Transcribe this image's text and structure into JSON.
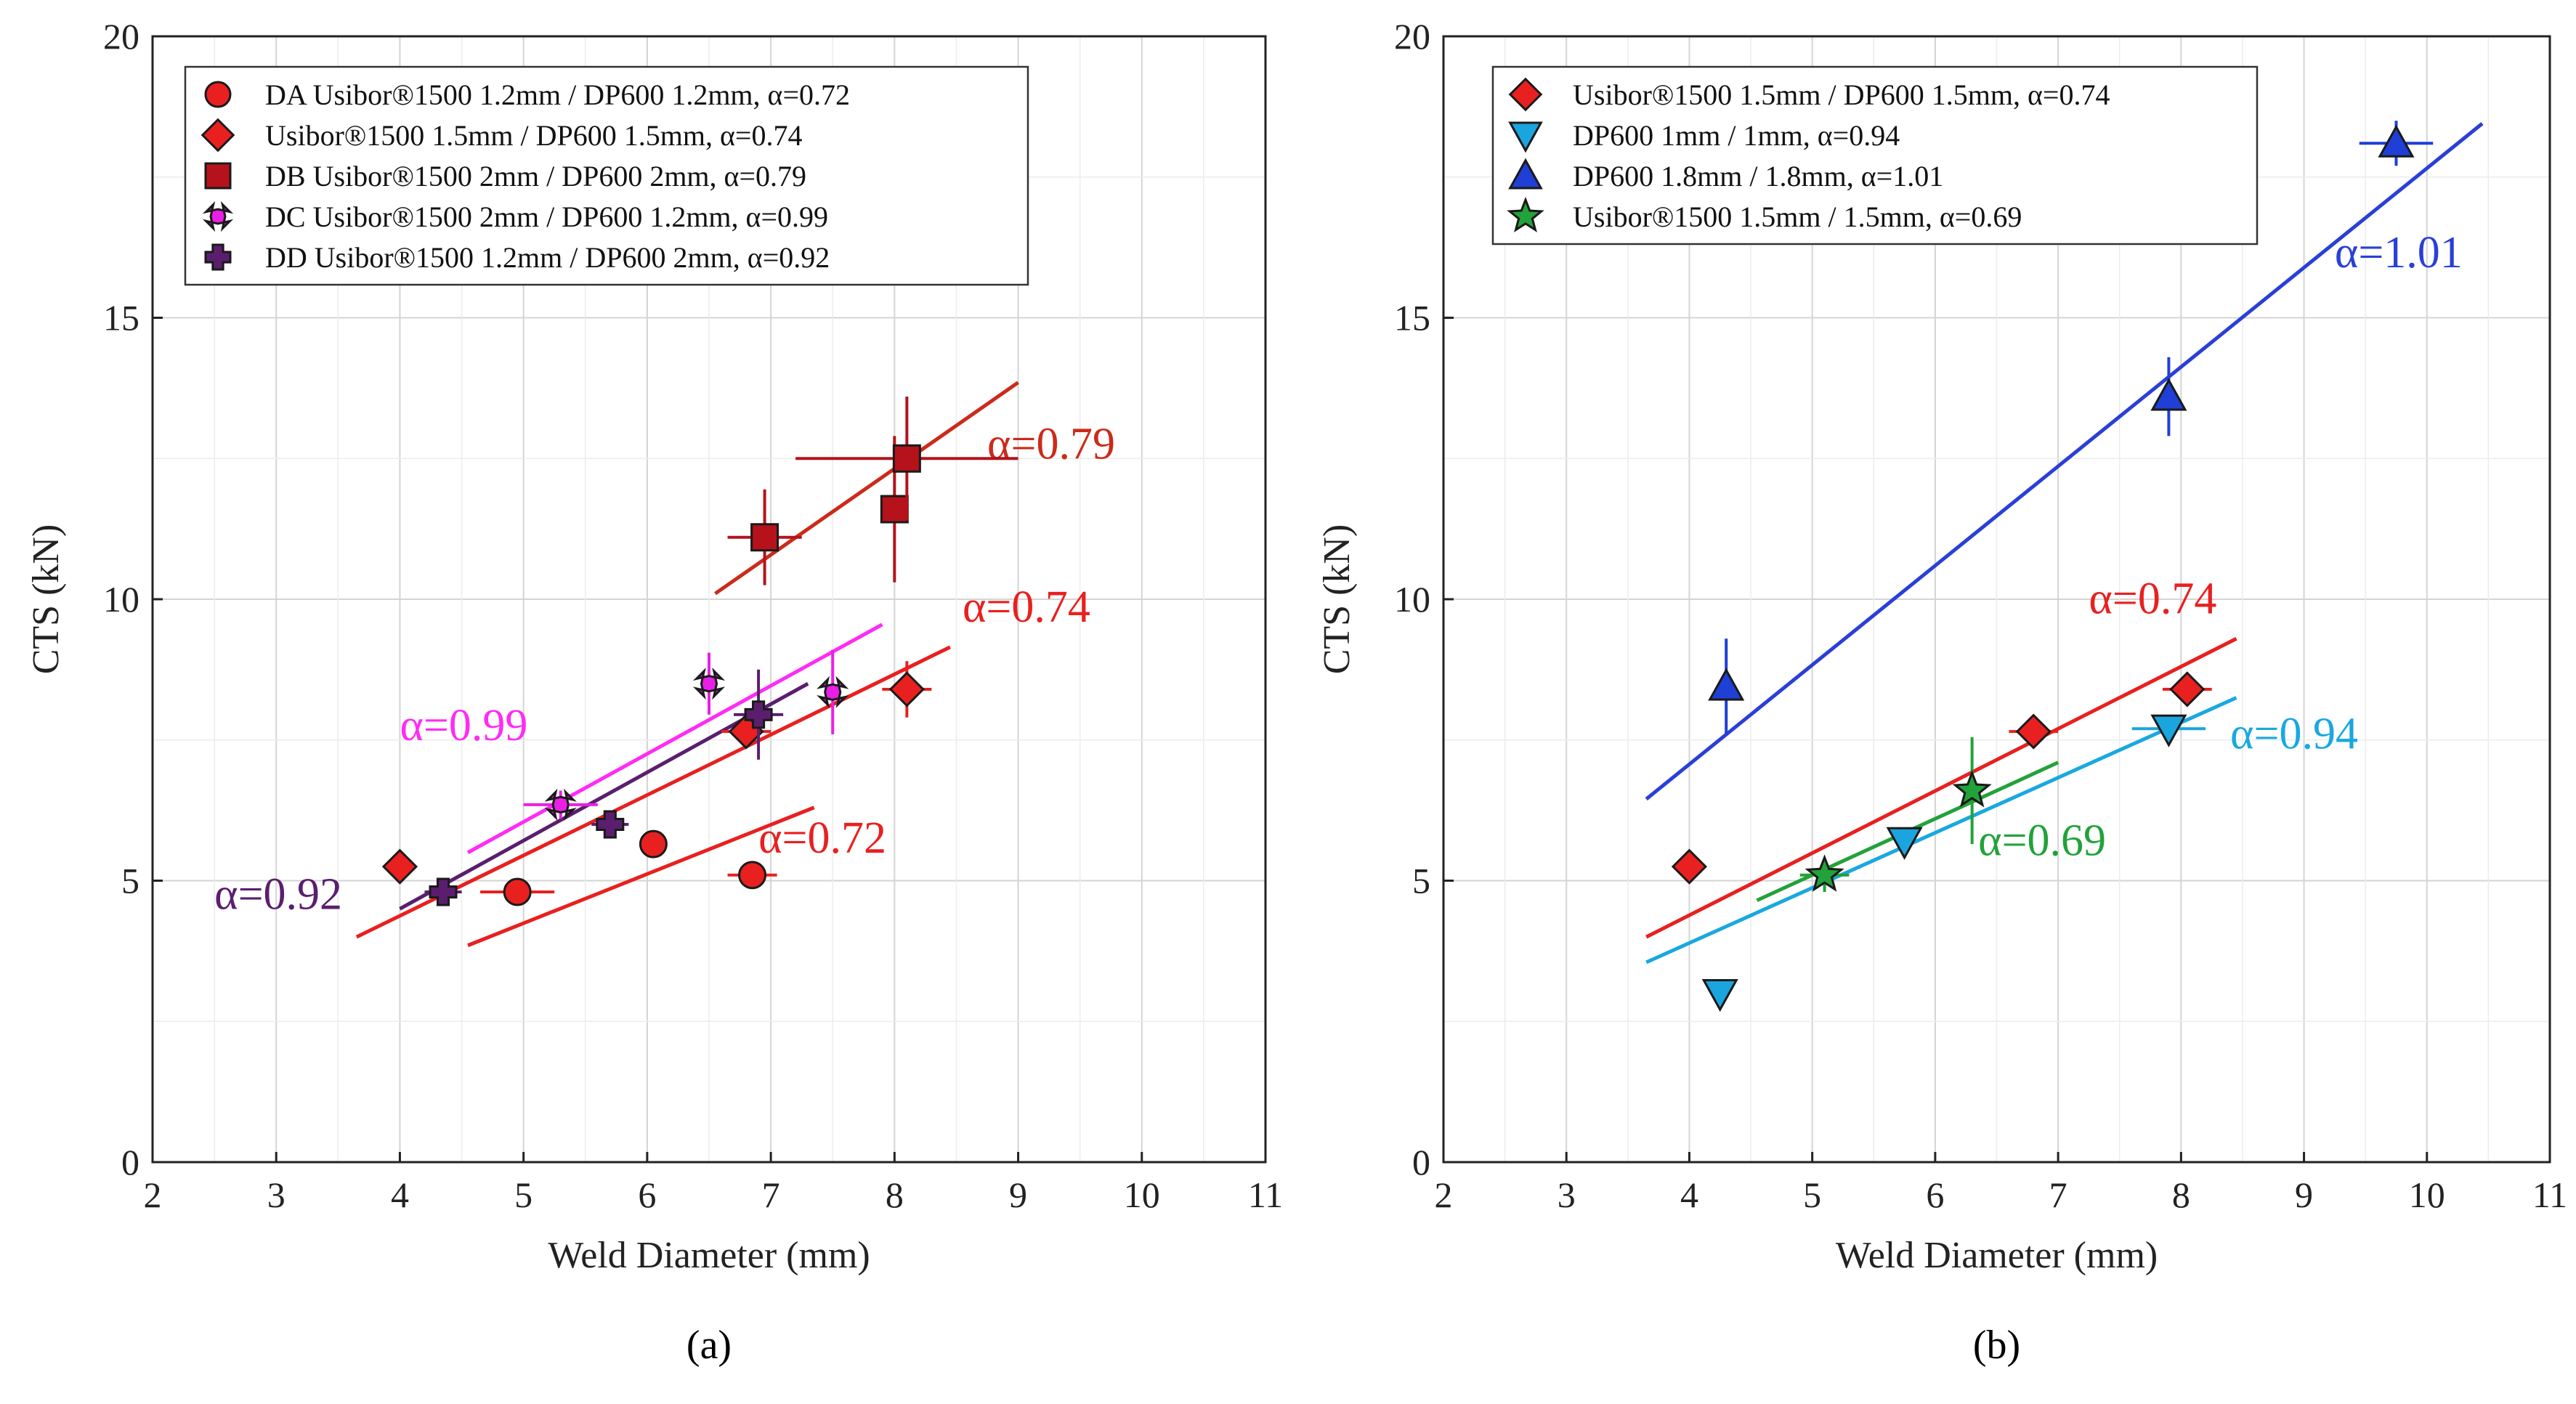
{
  "panels": [
    {
      "id": "a",
      "caption": "(a)",
      "chart_data": {
        "type": "scatter",
        "xlabel": "Weld Diameter (mm)",
        "ylabel": "CTS (kN)",
        "xlim": [
          2,
          11
        ],
        "ylim": [
          0,
          20
        ],
        "xticks": [
          2,
          3,
          4,
          5,
          6,
          7,
          8,
          9,
          10,
          11
        ],
        "yticks": [
          0,
          5,
          10,
          15,
          20
        ],
        "grid": true,
        "legend_position": "top-left",
        "series": [
          {
            "name": "DA Usibor®1500 1.2mm / DP600 1.2mm, α=0.72",
            "marker": "circle",
            "color": "#e8201f",
            "points": [
              {
                "x": 4.95,
                "y": 4.8,
                "xerr": 0.3,
                "yerr": 0
              },
              {
                "x": 6.05,
                "y": 5.65,
                "xerr": 0,
                "yerr": 0
              },
              {
                "x": 6.85,
                "y": 5.1,
                "xerr": 0.2,
                "yerr": 0
              }
            ]
          },
          {
            "name": "Usibor®1500 1.5mm / DP600 1.5mm, α=0.74",
            "marker": "diamond",
            "color": "#e8201f",
            "points": [
              {
                "x": 4.0,
                "y": 5.25,
                "xerr": 0,
                "yerr": 0
              },
              {
                "x": 6.8,
                "y": 7.65,
                "xerr": 0.2,
                "yerr": 0.2
              },
              {
                "x": 8.1,
                "y": 8.4,
                "xerr": 0.2,
                "yerr": 0.5
              }
            ]
          },
          {
            "name": "DB Usibor®1500 2mm / DP600 2mm, α=0.79",
            "marker": "square",
            "color": "#b5121b",
            "points": [
              {
                "x": 6.95,
                "y": 11.1,
                "xerr": 0.3,
                "yerr": 0.85
              },
              {
                "x": 8.0,
                "y": 11.6,
                "xerr": 0,
                "yerr": 1.3
              },
              {
                "x": 8.1,
                "y": 12.5,
                "xerr": 0.9,
                "yerr": 1.1
              }
            ]
          },
          {
            "name": "DC Usibor®1500 2mm / DP600 1.2mm, α=0.99",
            "marker": "x",
            "color": "#e91fe6",
            "points": [
              {
                "x": 5.3,
                "y": 6.35,
                "xerr": 0.3,
                "yerr": 0.25
              },
              {
                "x": 6.5,
                "y": 8.5,
                "xerr": 0,
                "yerr": 0.55
              },
              {
                "x": 7.5,
                "y": 8.35,
                "xerr": 0,
                "yerr": 0.75
              }
            ]
          },
          {
            "name": "DD Usibor®1500 1.2mm / DP600 2mm, α=0.92",
            "marker": "plus",
            "color": "#5b1e6e",
            "points": [
              {
                "x": 4.35,
                "y": 4.8,
                "xerr": 0.15,
                "yerr": 0
              },
              {
                "x": 5.7,
                "y": 6.0,
                "xerr": 0.15,
                "yerr": 0.2
              },
              {
                "x": 6.9,
                "y": 7.95,
                "xerr": 0.2,
                "yerr": 0.8
              }
            ]
          }
        ],
        "fit_lines": [
          {
            "label": "α=0.72",
            "color": "#e8201f",
            "x": [
              4.55,
              7.35
            ],
            "y": [
              3.85,
              6.3
            ],
            "label_x": 6.9,
            "label_y": 5.5
          },
          {
            "label": "α=0.74",
            "color": "#e8201f",
            "x": [
              3.65,
              8.45
            ],
            "y": [
              4.0,
              9.15
            ],
            "label_x": 8.55,
            "label_y": 9.6
          },
          {
            "label": "α=0.79",
            "color": "#cc2a1a",
            "x": [
              6.55,
              9.0
            ],
            "y": [
              10.1,
              13.85
            ],
            "label_x": 8.75,
            "label_y": 12.5
          },
          {
            "label": "α=0.99",
            "color": "#ff2bf5",
            "x": [
              4.55,
              7.9
            ],
            "y": [
              5.5,
              9.55
            ],
            "label_x": 4.0,
            "label_y": 7.5
          },
          {
            "label": "α=0.92",
            "color": "#5b1e6e",
            "x": [
              4.0,
              7.3
            ],
            "y": [
              4.5,
              8.5
            ],
            "label_x": 2.5,
            "label_y": 4.5
          }
        ]
      }
    },
    {
      "id": "b",
      "caption": "(b)",
      "chart_data": {
        "type": "scatter",
        "xlabel": "Weld Diameter (mm)",
        "ylabel": "CTS (kN)",
        "xlim": [
          2,
          11
        ],
        "ylim": [
          0,
          20
        ],
        "xticks": [
          2,
          3,
          4,
          5,
          6,
          7,
          8,
          9,
          10,
          11
        ],
        "yticks": [
          0,
          5,
          10,
          15,
          20
        ],
        "grid": true,
        "legend_position": "top-left",
        "series": [
          {
            "name": "Usibor®1500 1.5mm / DP600 1.5mm, α=0.74",
            "marker": "diamond",
            "color": "#e8201f",
            "points": [
              {
                "x": 4.0,
                "y": 5.25,
                "xerr": 0,
                "yerr": 0
              },
              {
                "x": 6.8,
                "y": 7.65,
                "xerr": 0.2,
                "yerr": 0.2
              },
              {
                "x": 8.05,
                "y": 8.4,
                "xerr": 0.2,
                "yerr": 0.3
              }
            ]
          },
          {
            "name": "DP600 1mm / 1mm, α=0.94",
            "marker": "triangle-down",
            "color": "#1aa5de",
            "points": [
              {
                "x": 4.25,
                "y": 3.0,
                "xerr": 0,
                "yerr": 0
              },
              {
                "x": 5.75,
                "y": 5.7,
                "xerr": 0,
                "yerr": 0.25
              },
              {
                "x": 7.9,
                "y": 7.7,
                "xerr": 0.3,
                "yerr": 0
              }
            ]
          },
          {
            "name": "DP600 1.8mm / 1.8mm, α=1.01",
            "marker": "triangle-up",
            "color": "#1f3fd6",
            "points": [
              {
                "x": 4.3,
                "y": 8.45,
                "xerr": 0,
                "yerr": 0.85
              },
              {
                "x": 7.9,
                "y": 13.6,
                "xerr": 0,
                "yerr": 0.7
              },
              {
                "x": 9.75,
                "y": 18.1,
                "xerr": 0.3,
                "yerr": 0.4
              }
            ]
          },
          {
            "name": "Usibor®1500 1.5mm / 1.5mm, α=0.69",
            "marker": "star",
            "color": "#22a23a",
            "points": [
              {
                "x": 5.1,
                "y": 5.1,
                "xerr": 0.2,
                "yerr": 0.3
              },
              {
                "x": 6.3,
                "y": 6.6,
                "xerr": 0,
                "yerr": 0.95
              }
            ]
          }
        ],
        "fit_lines": [
          {
            "label": "α=1.01",
            "color": "#2a3fd8",
            "x": [
              3.65,
              10.45
            ],
            "y": [
              6.45,
              18.45
            ],
            "label_x": 9.25,
            "label_y": 15.9
          },
          {
            "label": "α=0.74",
            "color": "#e8201f",
            "x": [
              3.65,
              8.45
            ],
            "y": [
              4.0,
              9.3
            ],
            "label_x": 7.25,
            "label_y": 9.75
          },
          {
            "label": "α=0.94",
            "color": "#19a8e0",
            "x": [
              3.65,
              8.45
            ],
            "y": [
              3.55,
              8.25
            ],
            "label_x": 8.4,
            "label_y": 7.35
          },
          {
            "label": "α=0.69",
            "color": "#22a23a",
            "x": [
              4.55,
              7.0
            ],
            "y": [
              4.65,
              7.1
            ],
            "label_x": 6.35,
            "label_y": 5.45
          }
        ]
      }
    }
  ]
}
